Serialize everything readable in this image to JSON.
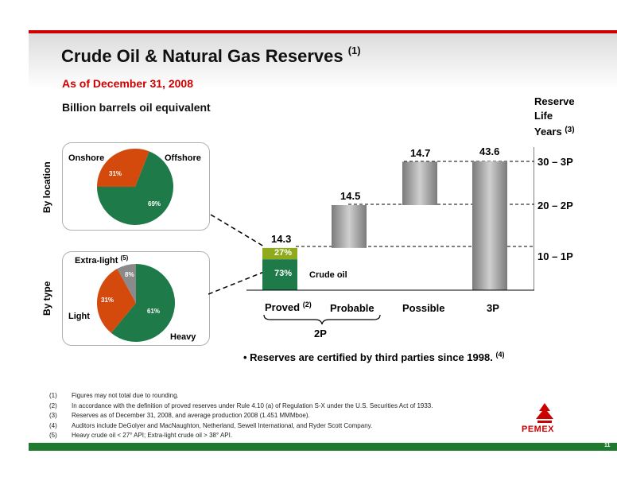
{
  "header": {
    "title": "Crude Oil & Natural Gas Reserves",
    "title_sup": "(1)",
    "date": "As of December 31, 2008",
    "units": "Billion barrels oil equivalent"
  },
  "reserve_life": {
    "label_line1": "Reserve",
    "label_line2": "Life",
    "label_line3": "Years",
    "label_sup": "(3)",
    "levels": [
      "30 – 3P",
      "20 – 2P",
      "10 – 1P"
    ]
  },
  "side_labels": {
    "location": "By location",
    "type": "By type"
  },
  "pie_location": {
    "labels": [
      "Onshore",
      "Offshore"
    ],
    "values": [
      31,
      69
    ],
    "display": [
      "31%",
      "69%"
    ],
    "colors": [
      "#d44a0c",
      "#1e7a48"
    ]
  },
  "pie_type": {
    "labels": [
      "Extra-light",
      "Light",
      "Heavy"
    ],
    "label_sup": "(5)",
    "values": [
      8,
      31,
      61
    ],
    "display": [
      "8%",
      "31%",
      "61%"
    ],
    "colors": [
      "#8a8a8a",
      "#d44a0c",
      "#1e7a48"
    ]
  },
  "chart_data": {
    "type": "bar",
    "subtype": "waterfall",
    "categories": [
      "Proved",
      "Probable",
      "Possible",
      "3P"
    ],
    "values": [
      14.3,
      14.5,
      14.7,
      43.6
    ],
    "labels": [
      "14.3",
      "14.5",
      "14.7",
      "43.6"
    ],
    "proved_split": {
      "crude_oil_pct": 73,
      "other_pct": 27,
      "crude_label": "73%",
      "other_label": "27%",
      "crude_name": "Crude oil"
    },
    "proved_sup": "(2)",
    "group_label": "2P",
    "ylim": [
      0,
      43.6
    ]
  },
  "bullet": {
    "text": "• Reserves are certified by third parties since 1998.",
    "sup": "(4)"
  },
  "notes": [
    {
      "num": "(1)",
      "text": "Figures may not total due to rounding."
    },
    {
      "num": "(2)",
      "text": "In accordance with the definition of proved reserves under Rule 4.10 (a) of Regulation S-X under the U.S. Securities Act of 1933."
    },
    {
      "num": "(3)",
      "text": "Reserves as of December 31, 2008, and average production 2008 (1.451 MMMboe)."
    },
    {
      "num": "(4)",
      "text": "Auditors include DeGolyer and MacNaughton, Netherland, Sewell International, and Ryder Scott Company."
    },
    {
      "num": "(5)",
      "text": "Heavy crude oil < 27° API; Extra-light crude oil > 38° API."
    }
  ],
  "footer": {
    "logo": "PEMEX",
    "page": "11"
  },
  "colors": {
    "red": "#cc0000",
    "green": "#1e7a2e",
    "proved_green": "#1e7a48",
    "proved_top": "#8faa1a"
  }
}
